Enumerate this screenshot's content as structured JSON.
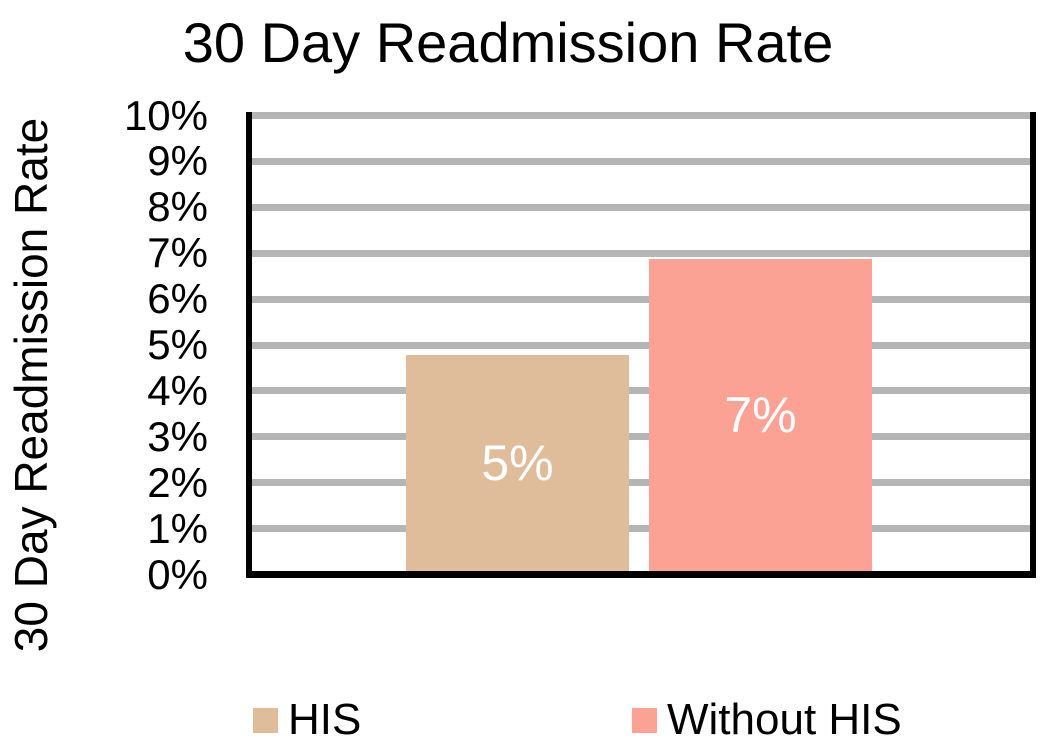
{
  "chart_title": "30 Day Readmission Rate",
  "y_axis": {
    "title": "30 Day Readmission Rate",
    "ticks": [
      "10%",
      "9%",
      "8%",
      "7%",
      "6%",
      "5%",
      "4%",
      "3%",
      "2%",
      "1%",
      "0%"
    ],
    "min": 0,
    "max": 10
  },
  "legend": {
    "items": [
      {
        "label": "HIS",
        "color": "#DFBD9B"
      },
      {
        "label": "Without HIS",
        "color": "#FCA294"
      }
    ]
  },
  "colors": {
    "gridline": "#B5B5B5",
    "axis": "#000000",
    "bar_label_text": "#FFFFFF",
    "text": "#000000"
  },
  "chart_data": {
    "type": "bar",
    "title": "30 Day Readmission Rate",
    "ylabel": "30 Day Readmission Rate",
    "xlabel": "",
    "ylim": [
      0,
      10
    ],
    "y_tick_step": 1,
    "y_tick_suffix": "%",
    "grid": true,
    "legend_position": "bottom",
    "categories": [
      "HIS",
      "Without HIS"
    ],
    "series": [
      {
        "name": "HIS",
        "value": 4.7,
        "data_label": "5%",
        "color": "#DFBD9B"
      },
      {
        "name": "Without HIS",
        "value": 6.8,
        "data_label": "7%",
        "color": "#FCA294"
      }
    ]
  }
}
